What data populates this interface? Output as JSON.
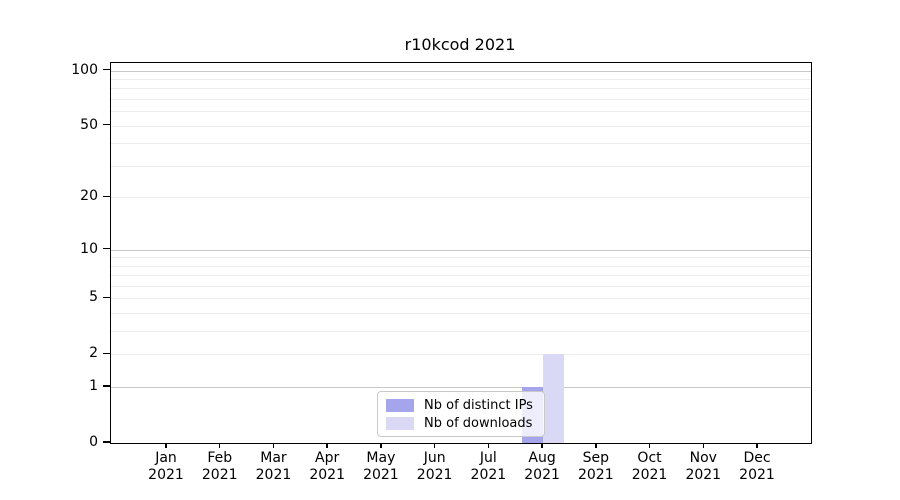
{
  "chart_data": {
    "type": "bar",
    "title": "r10kcod 2021",
    "x_tick_months": [
      "Jan",
      "Feb",
      "Mar",
      "Apr",
      "May",
      "Jun",
      "Jul",
      "Aug",
      "Sep",
      "Oct",
      "Nov",
      "Dec"
    ],
    "x_tick_year": "2021",
    "series": [
      {
        "name": "Nb of distinct IPs",
        "color": "#a5a5ec",
        "values": [
          0,
          0,
          0,
          0,
          0,
          0,
          0,
          1,
          0,
          0,
          0,
          0
        ]
      },
      {
        "name": "Nb of downloads",
        "color": "#d9d9f6",
        "values": [
          0,
          0,
          0,
          0,
          0,
          0,
          0,
          2,
          0,
          0,
          0,
          0
        ]
      }
    ],
    "y_ticks": [
      0,
      1,
      2,
      5,
      10,
      20,
      50,
      100
    ],
    "y_scale": "log10(1+value)",
    "ylim": [
      0,
      110
    ],
    "grid": {
      "orientation": "horizontal",
      "major_values": [
        1,
        10,
        100
      ],
      "minor_values": [
        2,
        3,
        4,
        5,
        6,
        7,
        8,
        9,
        20,
        30,
        40,
        50,
        60,
        70,
        80,
        90
      ],
      "major_color": "#c8c8c8",
      "minor_color": "#ededed"
    },
    "legend_position": "lower center",
    "bar_colors": {
      "distinct_ips": "#a5a5ec",
      "downloads": "#d9d9f6"
    }
  }
}
